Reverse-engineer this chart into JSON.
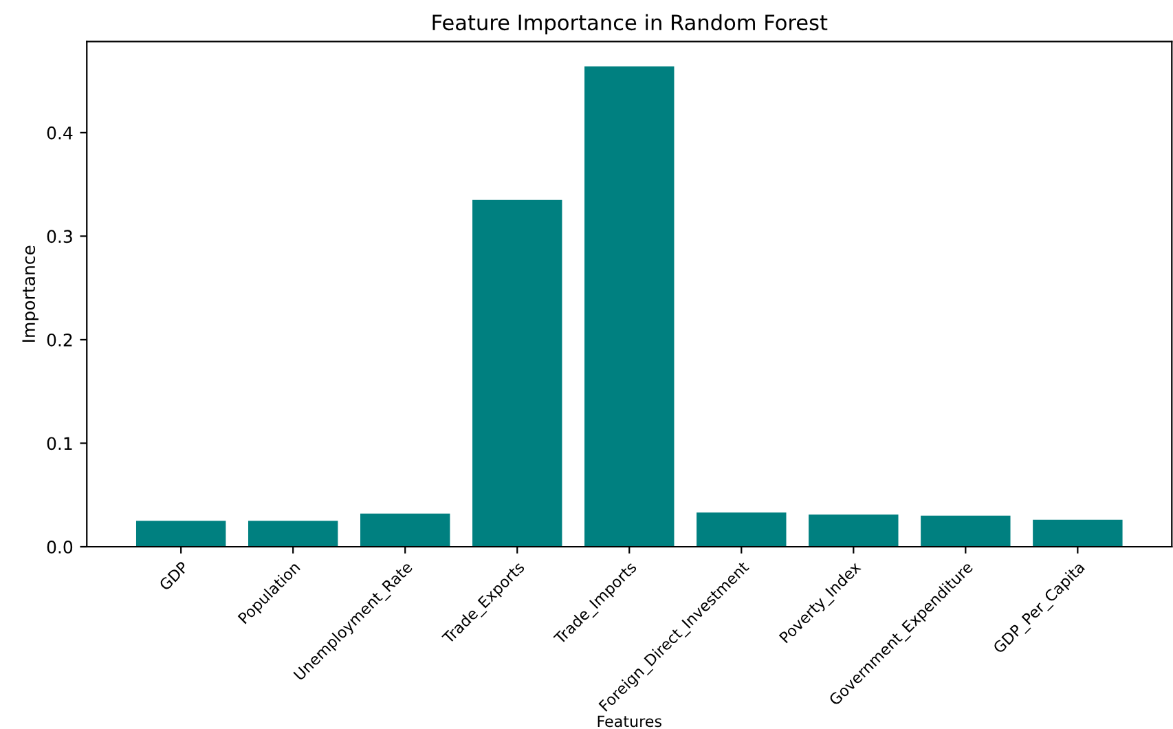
{
  "chart_data": {
    "type": "bar",
    "title": "Feature Importance in Random Forest",
    "xlabel": "Features",
    "ylabel": "Importance",
    "categories": [
      "GDP",
      "Population",
      "Unemployment_Rate",
      "Trade_Exports",
      "Trade_Imports",
      "Foreign_Direct_Investment",
      "Poverty_Index",
      "Government_Expenditure",
      "GDP_Per_Capita"
    ],
    "values": [
      0.025,
      0.025,
      0.032,
      0.335,
      0.464,
      0.033,
      0.031,
      0.03,
      0.026
    ],
    "color": "#008080",
    "ylim": [
      0,
      0.488
    ],
    "yticks": [
      {
        "value": 0,
        "label": "0.0"
      },
      0.1,
      0.2,
      0.3,
      0.4
    ],
    "grid": false
  }
}
